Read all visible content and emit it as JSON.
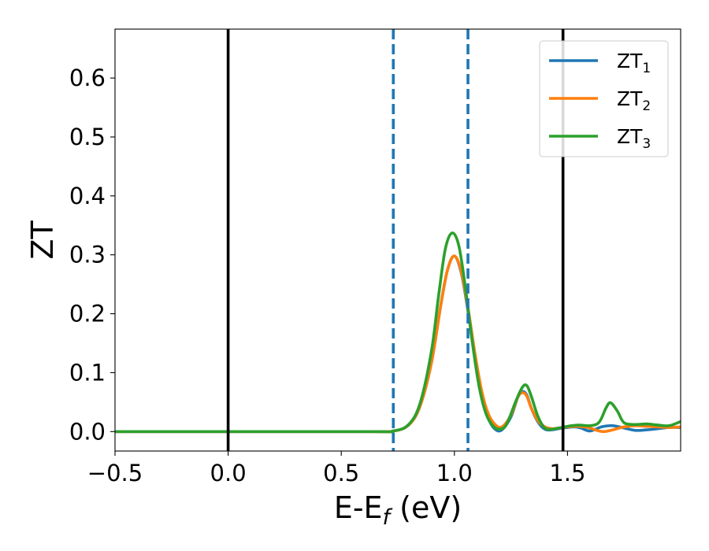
{
  "chart_data": {
    "type": "line",
    "xlabel": "E-E",
    "xlabel_sub": "f",
    "xlabel_unit": " (eV)",
    "ylabel": "ZT",
    "xlim": [
      -0.5,
      2.0
    ],
    "ylim": [
      -0.033,
      0.683
    ],
    "xticks": [
      -0.5,
      0.0,
      0.5,
      1.0,
      1.5
    ],
    "xtick_labels": [
      "−0.5",
      "0.0",
      "0.5",
      "1.0",
      "1.5"
    ],
    "yticks": [
      0.0,
      0.1,
      0.2,
      0.3,
      0.4,
      0.5,
      0.6
    ],
    "ytick_labels": [
      "0.0",
      "0.1",
      "0.2",
      "0.3",
      "0.4",
      "0.5",
      "0.6"
    ],
    "grid": false,
    "legend_position": "top-right",
    "vertical_lines": [
      {
        "x": 0.0,
        "style": "solid",
        "color": "#000000"
      },
      {
        "x": 1.48,
        "style": "solid",
        "color": "#000000"
      },
      {
        "x": 0.73,
        "style": "dashed",
        "color": "#1f77b4"
      },
      {
        "x": 1.06,
        "style": "dashed",
        "color": "#1f77b4"
      }
    ],
    "series": [
      {
        "name": "ZT",
        "subscript": "1",
        "color": "#1f77b4",
        "x": [
          -0.5,
          0.6,
          0.73,
          0.8,
          0.85,
          0.9,
          0.94,
          0.97,
          1.0,
          1.03,
          1.06,
          1.09,
          1.12,
          1.15,
          1.18,
          1.21,
          1.25,
          1.28,
          1.3,
          1.32,
          1.34,
          1.37,
          1.4,
          1.43,
          1.46,
          1.5,
          1.53,
          1.56,
          1.6,
          1.65,
          1.7,
          1.75,
          1.8,
          1.85,
          1.9,
          1.95,
          2.0
        ],
        "y": [
          0.0,
          0.0,
          0.001,
          0.012,
          0.045,
          0.12,
          0.215,
          0.275,
          0.298,
          0.27,
          0.205,
          0.125,
          0.06,
          0.022,
          0.004,
          0.003,
          0.025,
          0.058,
          0.068,
          0.062,
          0.04,
          0.016,
          0.004,
          0.003,
          0.005,
          0.007,
          0.008,
          0.006,
          0.001,
          0.008,
          0.01,
          0.006,
          0.002,
          0.003,
          0.005,
          0.007,
          0.007
        ]
      },
      {
        "name": "ZT",
        "subscript": "2",
        "color": "#ff7f0e",
        "x": [
          -0.5,
          0.6,
          0.73,
          0.8,
          0.85,
          0.9,
          0.94,
          0.97,
          1.0,
          1.03,
          1.06,
          1.09,
          1.12,
          1.15,
          1.18,
          1.21,
          1.25,
          1.28,
          1.3,
          1.32,
          1.34,
          1.37,
          1.4,
          1.43,
          1.46,
          1.5,
          1.55,
          1.6,
          1.63,
          1.66,
          1.7,
          1.75,
          1.8,
          1.85,
          1.9,
          1.95,
          2.0
        ],
        "y": [
          0.0,
          0.0,
          0.001,
          0.012,
          0.045,
          0.12,
          0.215,
          0.275,
          0.298,
          0.272,
          0.21,
          0.135,
          0.07,
          0.03,
          0.012,
          0.008,
          0.028,
          0.058,
          0.066,
          0.06,
          0.04,
          0.018,
          0.008,
          0.005,
          0.006,
          0.008,
          0.009,
          0.006,
          0.002,
          0.0,
          0.003,
          0.008,
          0.01,
          0.009,
          0.008,
          0.007,
          0.008
        ]
      },
      {
        "name": "ZT",
        "subscript": "3",
        "color": "#2ca02c",
        "x": [
          -0.5,
          0.6,
          0.73,
          0.8,
          0.85,
          0.9,
          0.93,
          0.96,
          0.99,
          1.02,
          1.05,
          1.08,
          1.11,
          1.14,
          1.17,
          1.2,
          1.23,
          1.27,
          1.3,
          1.32,
          1.34,
          1.37,
          1.4,
          1.43,
          1.46,
          1.5,
          1.55,
          1.6,
          1.64,
          1.67,
          1.69,
          1.72,
          1.75,
          1.8,
          1.85,
          1.9,
          1.95,
          2.0
        ],
        "y": [
          0.0,
          0.0,
          0.001,
          0.013,
          0.05,
          0.14,
          0.23,
          0.31,
          0.337,
          0.315,
          0.24,
          0.15,
          0.075,
          0.03,
          0.01,
          0.004,
          0.012,
          0.05,
          0.075,
          0.078,
          0.06,
          0.025,
          0.006,
          0.004,
          0.006,
          0.009,
          0.011,
          0.01,
          0.016,
          0.04,
          0.049,
          0.035,
          0.015,
          0.012,
          0.013,
          0.011,
          0.01,
          0.017
        ]
      }
    ]
  }
}
